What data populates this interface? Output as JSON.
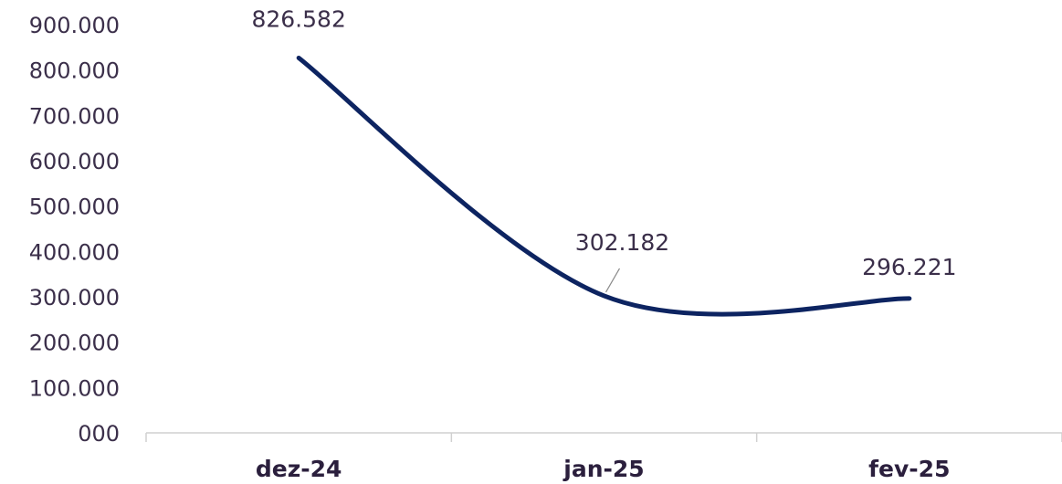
{
  "chart_data": {
    "type": "line",
    "title": "",
    "xlabel": "",
    "ylabel": "",
    "categories": [
      "dez-24",
      "jan-25",
      "fev-25"
    ],
    "values": [
      826582,
      302182,
      296221
    ],
    "data_labels": [
      "826.582",
      "302.182",
      "296.221"
    ],
    "ylim": [
      0,
      900000
    ],
    "y_ticks": [
      0,
      100000,
      200000,
      300000,
      400000,
      500000,
      600000,
      700000,
      800000,
      900000
    ],
    "y_tick_labels": [
      "000",
      "100.000",
      "200.000",
      "300.000",
      "400.000",
      "500.000",
      "600.000",
      "700.000",
      "800.000",
      "900.000"
    ],
    "grid": false,
    "legend": "none",
    "smoothed": true,
    "line_color": "#0d2461",
    "axis_color": "#d0d0d0"
  }
}
